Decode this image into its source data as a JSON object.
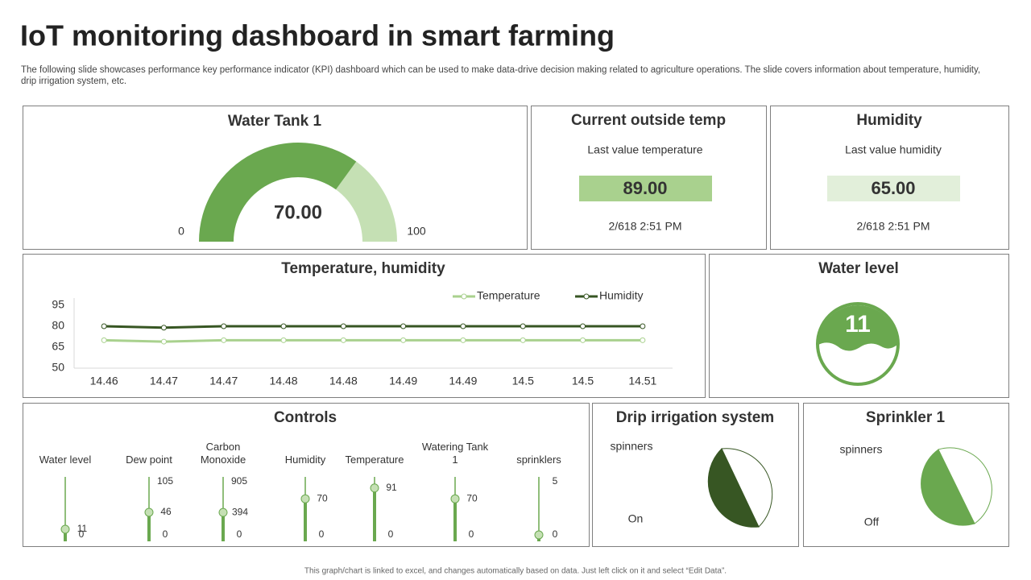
{
  "header": {
    "title": "IoT monitoring dashboard in smart farming",
    "description": "The following slide showcases performance key performance indicator (KPI) dashboard which can be used to make data-drive decision making related to agriculture operations. The slide covers information about temperature, humidity, drip irrigation system, etc."
  },
  "water_tank": {
    "title": "Water Tank 1",
    "value": 70,
    "value_label": "70.00",
    "min": 0,
    "max": 100
  },
  "outside_temp": {
    "title": "Current outside temp",
    "subtitle": "Last value temperature",
    "value": 89,
    "value_label": "89.00",
    "timestamp": "2/618 2:51 PM"
  },
  "humidity": {
    "title": "Humidity",
    "subtitle": "Last value humidity",
    "value": 65,
    "value_label": "65.00",
    "timestamp": "2/618 2:51 PM"
  },
  "chart_data": {
    "type": "line",
    "title": "Temperature, humidity",
    "categories": [
      "14.46",
      "14.47",
      "14.47",
      "14.48",
      "14.48",
      "14.49",
      "14.49",
      "14.5",
      "14.5",
      "14.51"
    ],
    "series": [
      {
        "name": "Temperature",
        "color": "#a9d18e",
        "values": [
          70,
          69,
          70,
          70,
          70,
          70,
          70,
          70,
          70,
          70
        ]
      },
      {
        "name": "Humidity",
        "color": "#375623",
        "values": [
          80,
          79,
          80,
          80,
          80,
          80,
          80,
          80,
          80,
          80
        ]
      }
    ],
    "ylim": [
      50,
      95
    ],
    "yticks": [
      50,
      65,
      80,
      95
    ]
  },
  "water_level": {
    "title": "Water level",
    "value": 11
  },
  "controls": {
    "title": "Controls",
    "sliders": [
      {
        "label": "Water level",
        "value": 11,
        "min": 0
      },
      {
        "label": "Dew point",
        "value": 46,
        "min": 0,
        "max": 105
      },
      {
        "label": "Carbon Monoxide",
        "value": 394,
        "min": 0,
        "max": 905
      },
      {
        "label": "Humidity",
        "value": 70,
        "min": 0
      },
      {
        "label": "Temperature",
        "value": 91,
        "min": 0
      },
      {
        "label": "Watering Tank 1",
        "value": 70,
        "min": 0
      },
      {
        "label": "sprinklers",
        "min": 0,
        "max": 5
      }
    ]
  },
  "drip": {
    "title": "Drip irrigation system",
    "label": "spinners",
    "status": "On"
  },
  "sprinkler": {
    "title": "Sprinkler 1",
    "label": "spinners",
    "status": "Off"
  },
  "footer": "This graph/chart is linked to excel, and changes automatically based on data. Just left click on it and select “Edit Data”."
}
